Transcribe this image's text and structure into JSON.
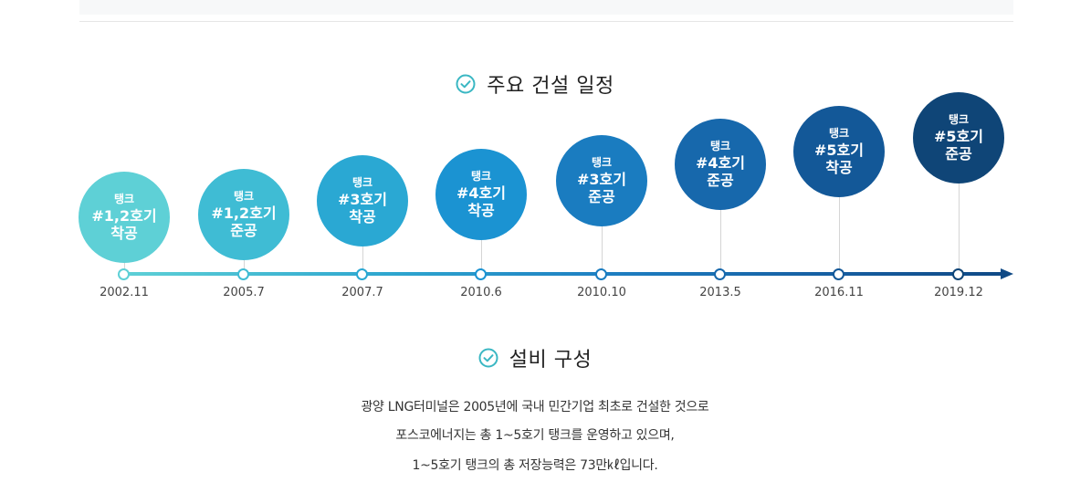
{
  "sections": {
    "schedule_title": "주요 건설 일정",
    "facility_title": "설비 구성"
  },
  "milestones": [
    {
      "date": "2002.11",
      "label_top": "탱크",
      "label_main": "#1,2호기",
      "label_bottom": "착공",
      "color": "#5ed0d6"
    },
    {
      "date": "2005.7",
      "label_top": "탱크",
      "label_main": "#1,2호기",
      "label_bottom": "준공",
      "color": "#3fbcd4"
    },
    {
      "date": "2007.7",
      "label_top": "탱크",
      "label_main": "#3호기",
      "label_bottom": "착공",
      "color": "#2aa8d3"
    },
    {
      "date": "2010.6",
      "label_top": "탱크",
      "label_main": "#4호기",
      "label_bottom": "착공",
      "color": "#1b93d2"
    },
    {
      "date": "2010.10",
      "label_top": "탱크",
      "label_main": "#3호기",
      "label_bottom": "준공",
      "color": "#1a7cc0"
    },
    {
      "date": "2013.5",
      "label_top": "탱크",
      "label_main": "#4호기",
      "label_bottom": "준공",
      "color": "#1768ac"
    },
    {
      "date": "2016.11",
      "label_top": "탱크",
      "label_main": "#5호기",
      "label_bottom": "착공",
      "color": "#135898"
    },
    {
      "date": "2019.12",
      "label_top": "탱크",
      "label_main": "#5호기",
      "label_bottom": "준공",
      "color": "#0f4577"
    }
  ],
  "description": [
    "광양 LNG터미널은 2005년에 국내 민간기업 최초로 건설한 것으로",
    "포스코에너지는 총 1~5호기 탱크를 운영하고 있으며,",
    "1~5호기 탱크의 총 저장능력은 73만㎘입니다."
  ],
  "icons": {
    "title_check": "check-circle-icon",
    "accent": "#3ab7c3"
  }
}
